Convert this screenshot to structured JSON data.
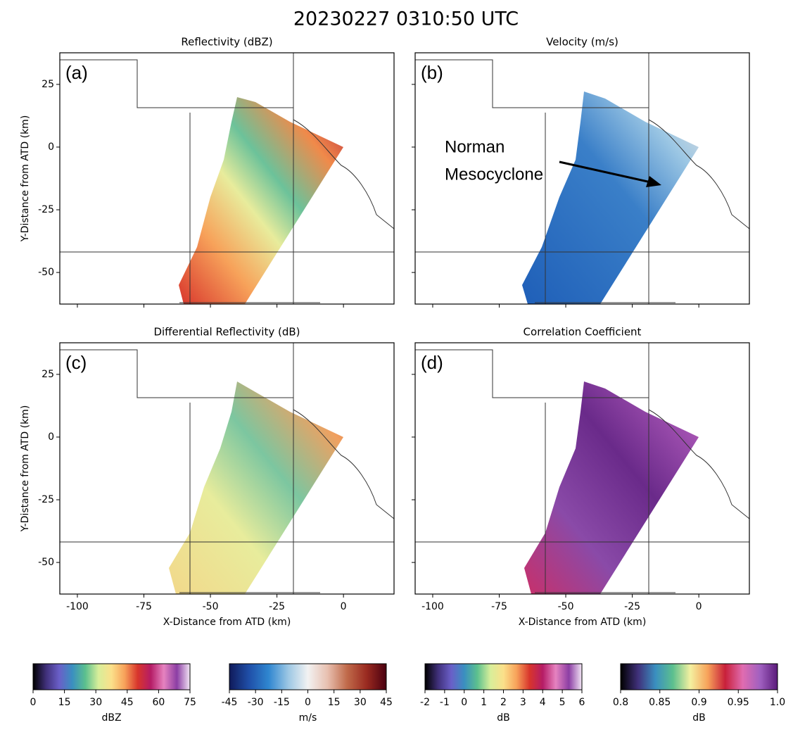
{
  "title": "20230227 0310:50 UTC",
  "axes": {
    "xlim": [
      -106.6,
      19
    ],
    "ylim": [
      -62.6,
      37.6
    ],
    "xticks": [
      -100,
      -75,
      -50,
      -25,
      0
    ],
    "yticks": [
      25,
      0,
      -25,
      -50
    ],
    "xlabel": "X-Distance from ATD (km)",
    "ylabel": "Y-Distance from ATD (km)"
  },
  "panels": [
    {
      "title": "Reflectivity (dBZ)",
      "label": "(a)"
    },
    {
      "title": "Velocity (m/s)",
      "label": "(b)"
    },
    {
      "title": "Differential Reflectivity (dB)",
      "label": "(c)"
    },
    {
      "title": "Correlation Coefficient",
      "label": "(d)"
    }
  ],
  "annotation": {
    "lines": [
      "Norman",
      "Mesocyclone"
    ]
  },
  "colorbars": [
    {
      "label": "dBZ",
      "lim": [
        0,
        75
      ],
      "ticks": [
        0,
        15,
        30,
        45,
        60,
        75
      ],
      "colors": [
        "#000000",
        "#40307a",
        "#6a5fc8",
        "#3a8fc0",
        "#5cc08e",
        "#d8ee9a",
        "#fbe08a",
        "#f7a25a",
        "#d8352c",
        "#b51c66",
        "#e683c0",
        "#8c3ea4",
        "#f3e6f5"
      ]
    },
    {
      "label": "m/s",
      "lim": [
        -45,
        45
      ],
      "ticks": [
        -45,
        -30,
        -15,
        0,
        15,
        30,
        45
      ],
      "colors": [
        "#101a5a",
        "#1f4fa8",
        "#2f86d0",
        "#9cc7e4",
        "#f2f2f2",
        "#e8c0b0",
        "#c06a4a",
        "#9a2a20",
        "#4a0010"
      ]
    },
    {
      "label": "dB",
      "lim": [
        -2,
        6
      ],
      "ticks": [
        -2,
        -1,
        0,
        1,
        2,
        3,
        4,
        5,
        6
      ],
      "colors": [
        "#000000",
        "#40307a",
        "#6a5fc8",
        "#3a8fc0",
        "#5cc08e",
        "#d8ee9a",
        "#fbe08a",
        "#f7a25a",
        "#d8352c",
        "#b51c66",
        "#e683c0",
        "#8c3ea4",
        "#f3e6f5"
      ]
    },
    {
      "label": "dB",
      "lim": [
        0.8,
        1
      ],
      "ticks": [
        0.8,
        0.85,
        0.9,
        0.95,
        {
          "value": 1,
          "label": "1.0"
        }
      ],
      "colors": [
        "#000000",
        "#40307a",
        "#3a8fc0",
        "#5cc08e",
        "#f4f0a0",
        "#f7a25a",
        "#c8203a",
        "#e06cb0",
        "#a060c0",
        "#5a1a7a"
      ]
    }
  ]
}
